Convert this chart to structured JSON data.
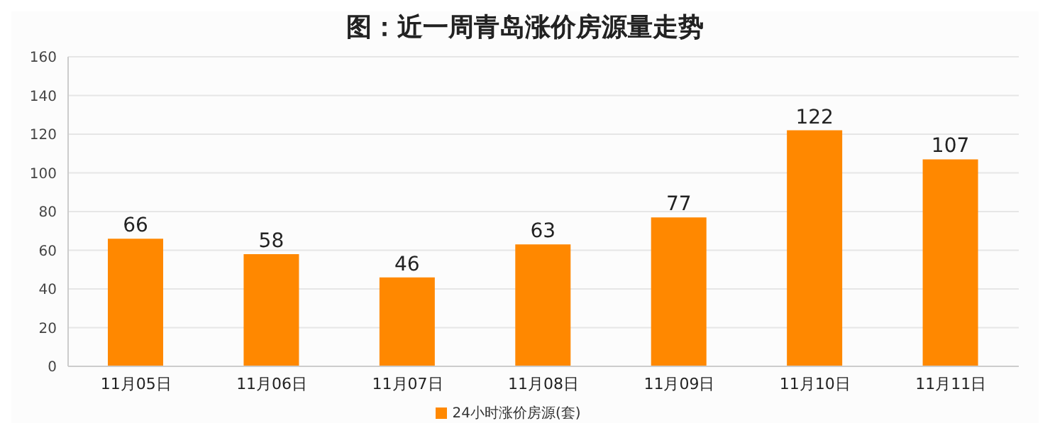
{
  "chart_data": {
    "type": "bar",
    "title": "图：近一周青岛涨价房源量走势",
    "categories": [
      "11月05日",
      "11月06日",
      "11月07日",
      "11月08日",
      "11月09日",
      "11月10日",
      "11月11日"
    ],
    "series": [
      {
        "name": "24小时涨价房源(套)",
        "color": "#ff8800",
        "values": [
          66,
          58,
          46,
          63,
          77,
          122,
          107
        ]
      }
    ],
    "ylim": [
      0,
      160
    ],
    "yticks": [
      0,
      20,
      40,
      60,
      80,
      100,
      120,
      140,
      160
    ],
    "grid": "y",
    "legend": "bottom",
    "data_labels": true
  }
}
